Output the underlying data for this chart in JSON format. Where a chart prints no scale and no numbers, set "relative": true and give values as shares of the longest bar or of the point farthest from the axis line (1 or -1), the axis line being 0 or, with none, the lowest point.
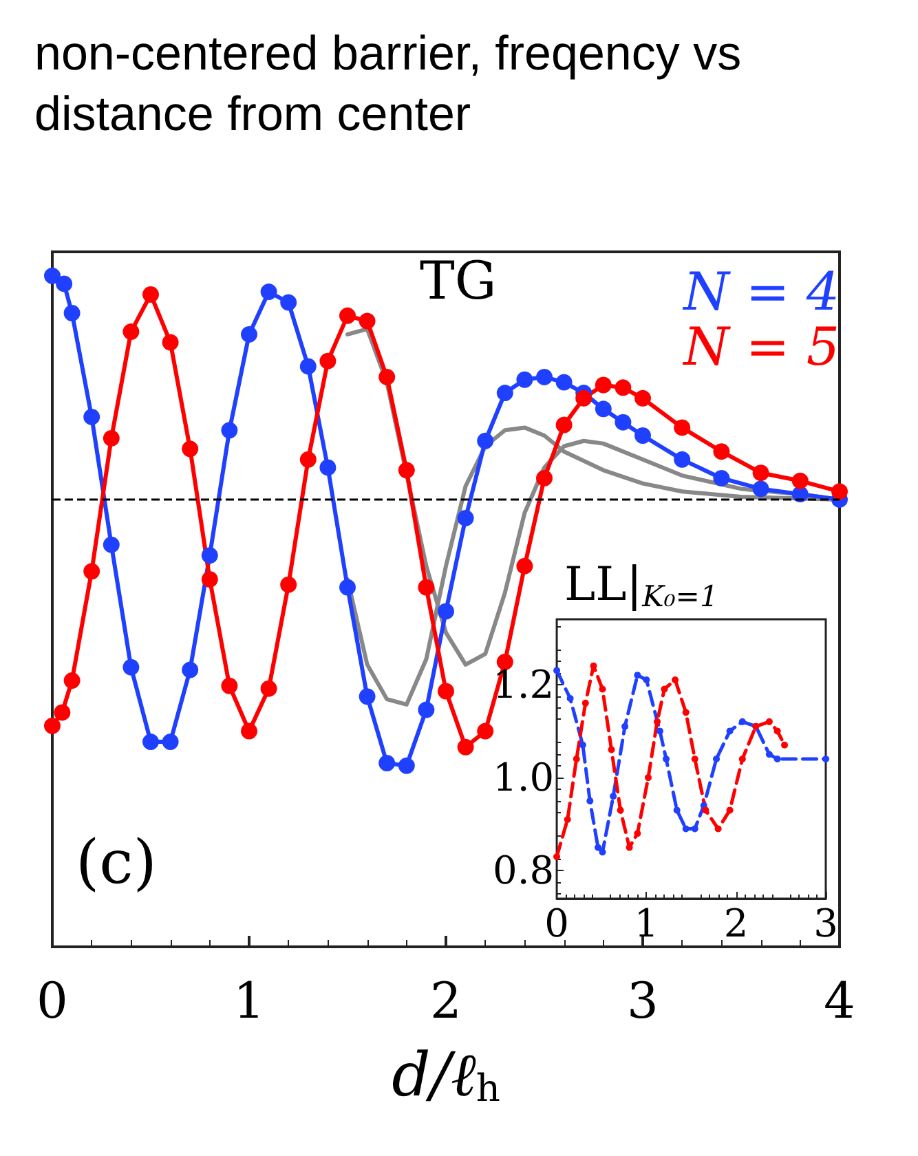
{
  "chart_data": [
    {
      "type": "line",
      "title": "non-centered barrier, freqency vs distance from center",
      "xlabel": "d/ℓ$_{h}$",
      "relative": true,
      "xlim": [
        0,
        4
      ],
      "xticks": [
        0,
        1,
        2,
        3,
        4
      ],
      "tick_labels": "x",
      "grid": false,
      "legend": "top right",
      "marker": "circle",
      "line_style": "solid",
      "annotations": [
        "TG",
        "(c)"
      ],
      "ref_lines": [
        {
          "axis": "y",
          "value": 0,
          "color": "#000000",
          "line_style": "dashed"
        }
      ],
      "series": [
        {
          "color": "#888888",
          "marker": "none",
          "x": [
            1.5,
            1.6,
            1.7,
            1.8,
            1.9,
            2.0,
            2.1,
            2.2,
            2.3,
            2.4,
            2.5,
            2.6,
            2.8,
            3.0,
            3.2,
            3.5,
            4.0
          ],
          "values": [
            -0.3,
            -0.62,
            -0.75,
            -0.77,
            -0.6,
            -0.25,
            0.05,
            0.2,
            0.26,
            0.27,
            0.24,
            0.18,
            0.11,
            0.06,
            0.03,
            0.01,
            0
          ]
        },
        {
          "color": "#888888",
          "marker": "none",
          "x": [
            1.5,
            1.6,
            1.7,
            1.9,
            2.0,
            2.1,
            2.2,
            2.3,
            2.4,
            2.5,
            2.6,
            2.7,
            2.8,
            3.0,
            3.2,
            3.5,
            3.8,
            4.0
          ],
          "values": [
            0.62,
            0.64,
            0.44,
            -0.25,
            -0.5,
            -0.62,
            -0.58,
            -0.35,
            -0.05,
            0.12,
            0.2,
            0.22,
            0.21,
            0.15,
            0.09,
            0.04,
            0.02,
            0
          ]
        },
        {
          "name": "N = 4",
          "color": "#2040ff",
          "x": [
            0,
            0.06,
            0.1,
            0.2,
            0.3,
            0.4,
            0.5,
            0.6,
            0.7,
            0.8,
            0.9,
            1.0,
            1.1,
            1.2,
            1.3,
            1.4,
            1.5,
            1.6,
            1.7,
            1.8,
            1.9,
            2.0,
            2.1,
            2.2,
            2.3,
            2.4,
            2.5,
            2.6,
            2.7,
            2.8,
            2.9,
            3.0,
            3.2,
            3.4,
            3.6,
            3.8,
            4.0
          ],
          "values": [
            0.84,
            0.81,
            0.7,
            0.31,
            -0.17,
            -0.63,
            -0.91,
            -0.91,
            -0.64,
            -0.21,
            0.26,
            0.62,
            0.78,
            0.74,
            0.5,
            0.12,
            -0.33,
            -0.74,
            -0.99,
            -1.0,
            -0.79,
            -0.42,
            -0.07,
            0.22,
            0.4,
            0.45,
            0.46,
            0.44,
            0.4,
            0.34,
            0.29,
            0.24,
            0.15,
            0.08,
            0.04,
            0.02,
            0
          ]
        },
        {
          "name": "N = 5",
          "color": "#ff0000",
          "x": [
            0,
            0.05,
            0.1,
            0.2,
            0.3,
            0.4,
            0.5,
            0.6,
            0.7,
            0.8,
            0.9,
            1.0,
            1.1,
            1.2,
            1.3,
            1.4,
            1.5,
            1.6,
            1.7,
            1.8,
            1.9,
            2.0,
            2.1,
            2.2,
            2.3,
            2.4,
            2.5,
            2.6,
            2.7,
            2.8,
            2.9,
            3.0,
            3.2,
            3.4,
            3.6,
            3.8,
            4.0
          ],
          "values": [
            -0.85,
            -0.8,
            -0.68,
            -0.27,
            0.23,
            0.63,
            0.77,
            0.59,
            0.19,
            -0.3,
            -0.7,
            -0.87,
            -0.71,
            -0.32,
            0.15,
            0.52,
            0.69,
            0.67,
            0.46,
            0.11,
            -0.33,
            -0.72,
            -0.93,
            -0.87,
            -0.61,
            -0.25,
            0.08,
            0.28,
            0.38,
            0.43,
            0.42,
            0.38,
            0.27,
            0.18,
            0.1,
            0.07,
            0.03
          ]
        }
      ]
    },
    {
      "type": "line",
      "title": "LL|$_{K₀=1}$",
      "xlim": [
        0,
        3
      ],
      "xticks": [
        0,
        1,
        2,
        3
      ],
      "ylim": [
        0.74,
        1.34
      ],
      "yticks": [
        {
          "value": 0.8,
          "label": "0.8"
        },
        {
          "value": 1,
          "label": "1.0"
        },
        {
          "value": 1.2,
          "label": "1.2"
        }
      ],
      "grid": false,
      "marker": "circle",
      "line_style": "dashed",
      "series": [
        {
          "color": "#2040ff",
          "x": [
            0,
            0.15,
            0.29,
            0.37,
            0.46,
            0.51,
            0.63,
            0.76,
            0.9,
            1.0,
            1.15,
            1.22,
            1.34,
            1.44,
            1.54,
            1.64,
            1.78,
            1.93,
            2.07,
            2.22,
            2.37,
            2.46,
            3.0
          ],
          "values": [
            1.23,
            1.17,
            1.07,
            0.95,
            0.85,
            0.84,
            0.96,
            1.11,
            1.22,
            1.21,
            1.1,
            1.04,
            0.93,
            0.89,
            0.89,
            0.94,
            1.04,
            1.1,
            1.12,
            1.11,
            1.05,
            1.04,
            1.04
          ]
        },
        {
          "color": "#ff0000",
          "x": [
            0,
            0.12,
            0.22,
            0.32,
            0.41,
            0.51,
            0.61,
            0.71,
            0.81,
            0.9,
            1.02,
            1.12,
            1.2,
            1.32,
            1.44,
            1.54,
            1.66,
            1.8,
            1.93,
            2.07,
            2.22,
            2.37,
            2.46,
            2.54
          ],
          "values": [
            0.83,
            0.91,
            1.04,
            1.16,
            1.24,
            1.19,
            1.06,
            0.93,
            0.85,
            0.88,
            1.0,
            1.12,
            1.19,
            1.21,
            1.14,
            1.04,
            0.93,
            0.89,
            0.93,
            1.04,
            1.11,
            1.12,
            1.1,
            1.07
          ]
        }
      ]
    }
  ]
}
